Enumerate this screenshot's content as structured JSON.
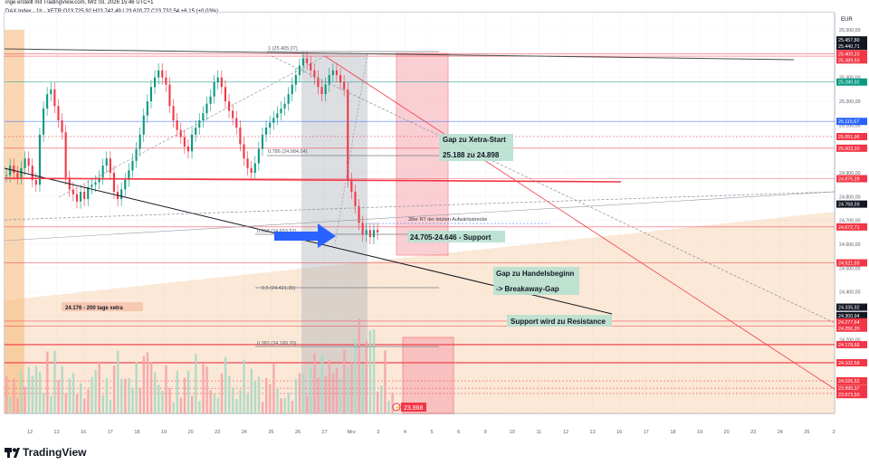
{
  "header": {
    "author_line": "inge erstellt mit TradingView.com, Mrz 03, 2026 15:46 UTC+1",
    "symbol_line": "DAX Index · 1h · XETR  O23.725,92  H23.742,49  L23.620,77  C23.732,54  +6,15 (+0,03%)"
  },
  "price_axis": {
    "currency": "EUR",
    "ticks": [
      "25.500,00",
      "25.400,00",
      "25.300,00",
      "25.200,00",
      "25.100,00",
      "25.000,00",
      "24.900,00",
      "24.800,00",
      "24.700,00",
      "24.600,00",
      "24.500,00",
      "24.400,00",
      "24.300,00",
      "24.200,00",
      "24.100,00",
      "24.000,00"
    ],
    "badges": [
      {
        "label": "25.457,80",
        "color": "#131722"
      },
      {
        "label": "25.440,71",
        "color": "#131722"
      },
      {
        "label": "25.400,23",
        "color": "#f23645"
      },
      {
        "label": "25.389,53",
        "color": "#f23645"
      },
      {
        "label": "25.280,92",
        "color": "#089981"
      },
      {
        "label": "25.115,67",
        "color": "#2962ff"
      },
      {
        "label": "25.051,96",
        "color": "#f23645"
      },
      {
        "label": "25.003,20",
        "color": "#f23645"
      },
      {
        "label": "24.875,28",
        "color": "#f23645"
      },
      {
        "label": "24.768,59",
        "color": "#131722"
      },
      {
        "label": "24.672,71",
        "color": "#f23645"
      },
      {
        "label": "24.521,93",
        "color": "#f23645"
      },
      {
        "label": "24.335,92",
        "color": "#131722"
      },
      {
        "label": "24.300,94",
        "color": "#131722"
      },
      {
        "label": "24.277,64",
        "color": "#f23645"
      },
      {
        "label": "24.256,20",
        "color": "#f23645"
      },
      {
        "label": "24.178,66",
        "color": "#f23645"
      },
      {
        "label": "24.102,58",
        "color": "#f23645"
      },
      {
        "label": "24.026,52",
        "color": "#f23645"
      },
      {
        "label": "23.995,37",
        "color": "#f23645"
      },
      {
        "label": "23.973,50",
        "color": "#f23645"
      }
    ]
  },
  "time_axis": {
    "ticks": [
      "12",
      "13",
      "16",
      "17",
      "18",
      "19",
      "20",
      "23",
      "24",
      "25",
      "26",
      "27",
      "Mrz",
      "3",
      "4",
      "5",
      "6",
      "9",
      "10",
      "11",
      "12",
      "13",
      "16",
      "17",
      "18",
      "19",
      "20",
      "23",
      "24",
      "25",
      "2"
    ]
  },
  "annotations": {
    "gap_xetra_1": "Gap zu Xetra-Start",
    "gap_xetra_2": "25.188 zu 24.898",
    "support_zone": "24.705-24.646 - Support",
    "rt_38": "38er RT der letzten Aufwärtsstrecke",
    "gap_handel_1": "Gap zu Handelsbeginn",
    "gap_handel_2": "-> Breakaway-Gap",
    "support_resistance": "Support wird zu Resistance",
    "ma200": "24.176 - 200 tage xetra",
    "current_price": "23.868"
  },
  "fib_labels": {
    "f1": "1 (25.405,07)",
    "f0786": "0.786 (24.984,04)",
    "f0618": "0.618 (24.653,52)",
    "f05": "0.5 (24.421,35)",
    "f0382": "0.382 (24.189,20)"
  },
  "footer": {
    "logo_text": "TradingView"
  },
  "colors": {
    "bull": "#089981",
    "bear": "#f23645",
    "volume_bull": "#f4a3aa",
    "accent_blue": "#2962ff",
    "zone_orange": "#f5c79a"
  }
}
